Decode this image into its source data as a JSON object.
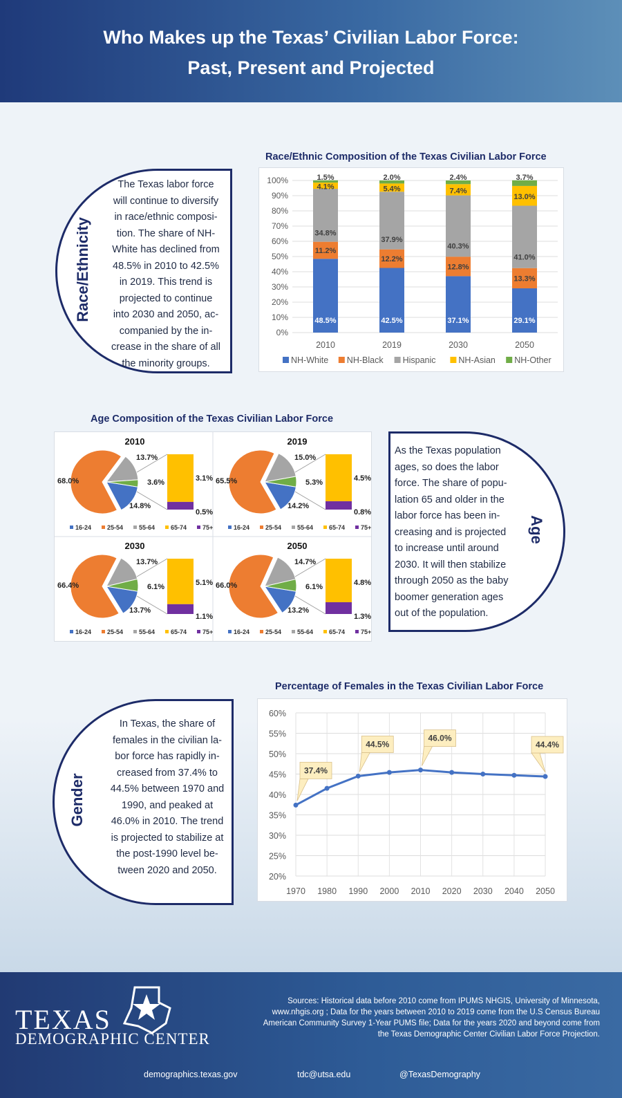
{
  "header": {
    "title_line1": "Who Makes up the Texas’ Civilian Labor Force:",
    "title_line2": "Past, Present and Projected"
  },
  "race": {
    "section_label": "Race/Ethnicity",
    "text": "The Texas labor force will continue to diversify in race/ethnic composition. The share of NH-White has declined from 48.5% in 2010 to 42.5% in 2019. This trend is projected to continue into 2030 and 2050, accompanied by the increase in the share of all the minority groups.",
    "text_lines": [
      "The Texas labor force",
      "will continue to diversify",
      "in race/ethnic composi-",
      "tion. The share of NH-",
      "White has declined from",
      "48.5%  in 2010 to 42.5%",
      "in 2019. This trend is",
      "projected to continue",
      "into 2030 and 2050, ac-",
      "companied by the in-",
      "crease in the share of all",
      "the minority groups."
    ]
  },
  "age": {
    "section_label": "Age",
    "text_lines": [
      "As the Texas population",
      "ages, so does the labor",
      "force. The share of popu-",
      "lation 65 and older in the",
      "labor force has been in-",
      "creasing and is projected",
      "to increase until around",
      "2030. It will then stabilize",
      "through 2050 as the baby",
      "boomer generation ages",
      "out of the population."
    ]
  },
  "gender": {
    "section_label": "Gender",
    "text_lines": [
      "In Texas, the share of",
      "females in the civilian la-",
      "bor force has rapidly in-",
      "creased from 37.4% to",
      "44.5% between 1970 and",
      "1990,  and peaked at",
      "46.0% in 2010. The trend",
      "is projected to stabilize at",
      "the post-1990 level be-",
      "tween 2020 and 2050."
    ]
  },
  "chart_data": [
    {
      "type": "bar",
      "stacked": true,
      "title": "Race/Ethnic Composition of the Texas Civilian Labor Force",
      "categories": [
        "2010",
        "2019",
        "2030",
        "2050"
      ],
      "yticks": [
        "0%",
        "10%",
        "20%",
        "30%",
        "40%",
        "50%",
        "60%",
        "70%",
        "80%",
        "90%",
        "100%"
      ],
      "ylim": [
        0,
        100
      ],
      "series": [
        {
          "name": "NH-White",
          "color": "#4472c4",
          "values": [
            48.5,
            42.5,
            37.1,
            29.1
          ],
          "labels": [
            "48.5%",
            "42.5%",
            "37.1%",
            "29.1%"
          ]
        },
        {
          "name": "NH-Black",
          "color": "#ed7d31",
          "values": [
            11.2,
            12.2,
            12.8,
            13.3
          ],
          "labels": [
            "11.2%",
            "12.2%",
            "12.8%",
            "13.3%"
          ]
        },
        {
          "name": "Hispanic",
          "color": "#a5a5a5",
          "values": [
            34.8,
            37.9,
            40.3,
            41.0
          ],
          "labels": [
            "34.8%",
            "37.9%",
            "40.3%",
            "41.0%"
          ]
        },
        {
          "name": "NH-Asian",
          "color": "#ffc000",
          "values": [
            4.1,
            5.4,
            7.4,
            13.0
          ],
          "labels": [
            "4.1%",
            "5.4%",
            "7.4%",
            "13.0%"
          ]
        },
        {
          "name": "NH-Other",
          "color": "#70ad47",
          "values": [
            1.5,
            2.0,
            2.4,
            3.7
          ],
          "labels": [
            "1.5%",
            "2.0%",
            "2.4%",
            "3.7%"
          ]
        }
      ]
    },
    {
      "type": "pie",
      "title": "Age Composition of the Texas Civilian Labor Force",
      "legend": [
        {
          "name": "16-24",
          "color": "#4472c4"
        },
        {
          "name": "25-54",
          "color": "#ed7d31"
        },
        {
          "name": "55-64",
          "color": "#a5a5a5"
        },
        {
          "name": "65-74",
          "color": "#ffc000"
        },
        {
          "name": "75+",
          "color": "#7030a0"
        }
      ],
      "panels": [
        {
          "year": "2010",
          "values": [
            14.8,
            68.0,
            13.7,
            3.1,
            0.5
          ],
          "labels": {
            "young": "14.8%",
            "prime": "68.0%",
            "older": "13.7%",
            "senior": "3.6%",
            "a6574": "3.1%",
            "a75": "0.5%"
          }
        },
        {
          "year": "2019",
          "values": [
            14.2,
            65.5,
            15.0,
            4.5,
            0.8
          ],
          "labels": {
            "young": "14.2%",
            "prime": "65.5%",
            "older": "15.0%",
            "senior": "5.3%",
            "a6574": "4.5%",
            "a75": "0.8%"
          }
        },
        {
          "year": "2030",
          "values": [
            13.7,
            66.4,
            13.7,
            5.1,
            1.1
          ],
          "labels": {
            "young": "13.7%",
            "prime": "66.4%",
            "older": "13.7%",
            "senior": "6.1%",
            "a6574": "5.1%",
            "a75": "1.1%"
          }
        },
        {
          "year": "2050",
          "values": [
            13.2,
            66.0,
            14.7,
            4.8,
            1.3
          ],
          "labels": {
            "young": "13.2%",
            "prime": "66.0%",
            "older": "14.7%",
            "senior": "6.1%",
            "a6574": "4.8%",
            "a75": "1.3%"
          }
        }
      ]
    },
    {
      "type": "line",
      "title": "Percentage of Females in the Texas Civilian Labor Force",
      "x": [
        "1970",
        "1980",
        "1990",
        "2000",
        "2010",
        "2020",
        "2030",
        "2040",
        "2050"
      ],
      "values": [
        37.4,
        41.5,
        44.5,
        45.4,
        46.0,
        45.4,
        45.0,
        44.7,
        44.4
      ],
      "yticks": [
        "20%",
        "25%",
        "30%",
        "35%",
        "40%",
        "45%",
        "50%",
        "55%",
        "60%"
      ],
      "ylim": [
        20,
        60
      ],
      "callouts": [
        {
          "index": 0,
          "label": "37.4%"
        },
        {
          "index": 2,
          "label": "44.5%"
        },
        {
          "index": 4,
          "label": "46.0%"
        },
        {
          "index": 8,
          "label": "44.4%"
        }
      ],
      "color": "#4472c4"
    }
  ],
  "footer": {
    "logo_line1": "TEXAS",
    "logo_line2": "DEMOGRAPHIC CENTER",
    "sources": "Sources: Historical data before 2010 come from IPUMS NHGIS, University of Minnesota, www.nhgis.org ; Data for the years between 2010 to 2019 come from the U.S Census Bureau American Community Survey 1-Year PUMS file; Data for the years 2020 and beyond come from the Texas Demographic Center Civilian Labor Force Projection.",
    "website": "demographics.texas.gov",
    "email": "tdc@utsa.edu",
    "twitter": "@TexasDemography"
  }
}
